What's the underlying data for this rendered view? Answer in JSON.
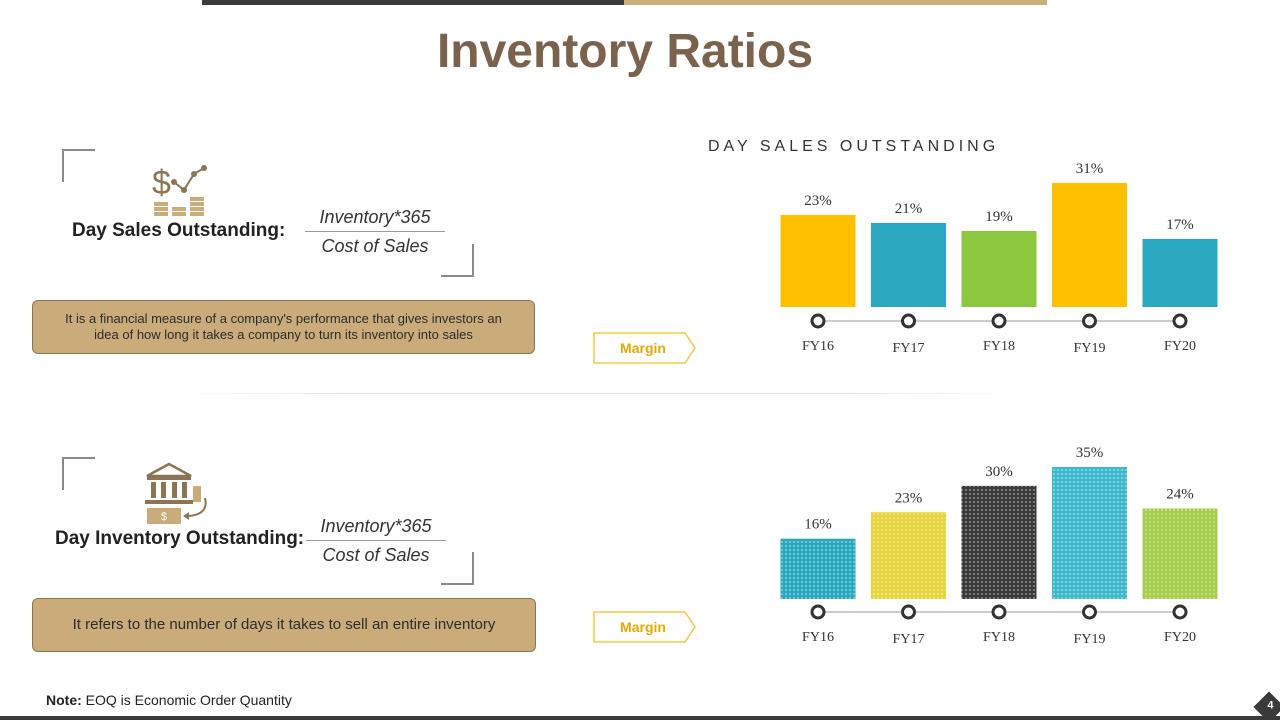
{
  "page": {
    "title": "Inventory Ratios",
    "note_label": "Note:",
    "note_text": "EOQ is Economic Order Quantity",
    "page_number": "4"
  },
  "colors": {
    "gold": "#FFC000",
    "teal": "#2AA8C0",
    "green": "#8DC63F",
    "brown": "#7a624d",
    "tan": "#c9ac7a"
  },
  "section1": {
    "label": "Day Sales Outstanding:",
    "formula_numerator": "Inventory*365",
    "formula_denominator": "Cost of Sales",
    "description": "It is a financial measure of a company's performance that gives investors an idea of how long it takes a company to turn its inventory into sales",
    "margin_label": "Margin",
    "icon": "dollar-growth-chart-icon"
  },
  "section2": {
    "label": "Day Inventory Outstanding:",
    "formula_numerator": "Inventory*365",
    "formula_denominator": "Cost of Sales",
    "description": "It refers to the number of days it takes to sell an entire inventory",
    "margin_label": "Margin",
    "icon": "bank-money-icon"
  },
  "chart_data": [
    {
      "type": "bar",
      "title": "DAY SALES OUTSTANDING",
      "categories": [
        "FY16",
        "FY17",
        "FY18",
        "FY19",
        "FY20"
      ],
      "values": [
        23,
        21,
        19,
        31,
        17
      ],
      "value_labels": [
        "23%",
        "21%",
        "19%",
        "31%",
        "17%"
      ],
      "bar_colors": [
        "#FFC000",
        "#2AA8C0",
        "#8DC63F",
        "#FFC000",
        "#2AA8C0"
      ],
      "ylim": [
        0,
        35
      ]
    },
    {
      "type": "bar",
      "title": "",
      "categories": [
        "FY16",
        "FY17",
        "FY18",
        "FY19",
        "FY20"
      ],
      "values": [
        16,
        23,
        30,
        35,
        24
      ],
      "value_labels": [
        "16%",
        "23%",
        "30%",
        "35%",
        "24%"
      ],
      "bar_colors": [
        "#2AA8C0",
        "#E8D43C",
        "#3a3a3a",
        "#3EB8CC",
        "#A6CE4A"
      ],
      "bar_patterns": [
        "dots",
        "dots",
        "dots",
        "dots",
        "dots"
      ],
      "ylim": [
        0,
        35
      ]
    }
  ]
}
